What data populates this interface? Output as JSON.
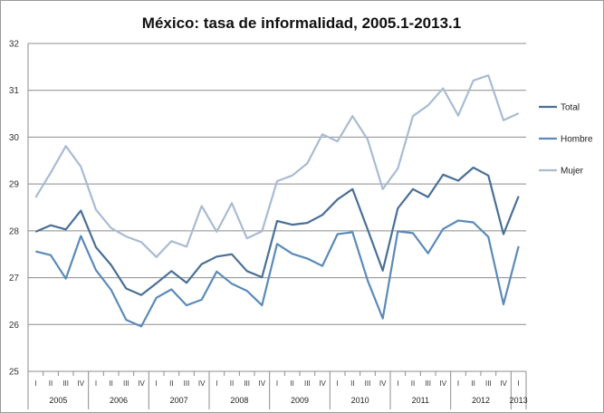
{
  "chart_data": {
    "type": "line",
    "title": "México: tasa de informalidad, 2005.1-2013.1",
    "xlabel": "",
    "ylabel": "",
    "ylim": [
      25,
      32
    ],
    "yticks": [
      25,
      26,
      27,
      28,
      29,
      30,
      31,
      32
    ],
    "grid": "horizontal",
    "legend_position": "right",
    "quarter_labels": [
      "I",
      "II",
      "III",
      "IV",
      "I",
      "II",
      "III",
      "IV",
      "I",
      "II",
      "III",
      "IV",
      "I",
      "II",
      "III",
      "IV",
      "I",
      "II",
      "III",
      "IV",
      "I",
      "II",
      "III",
      "IV",
      "I",
      "II",
      "III",
      "IV",
      "I",
      "II",
      "III",
      "IV",
      "I"
    ],
    "years": [
      {
        "label": "2005",
        "quarters": 4
      },
      {
        "label": "2006",
        "quarters": 4
      },
      {
        "label": "2007",
        "quarters": 4
      },
      {
        "label": "2008",
        "quarters": 4
      },
      {
        "label": "2009",
        "quarters": 4
      },
      {
        "label": "2010",
        "quarters": 4
      },
      {
        "label": "2011",
        "quarters": 4
      },
      {
        "label": "2012",
        "quarters": 4
      },
      {
        "label": "2013",
        "quarters": 1
      }
    ],
    "series": [
      {
        "name": "Total",
        "color": "#4a6f96",
        "values": [
          27.98,
          28.12,
          28.03,
          28.43,
          27.65,
          27.27,
          26.77,
          26.63,
          26.88,
          27.14,
          26.89,
          27.29,
          27.45,
          27.5,
          27.14,
          27.01,
          28.21,
          28.13,
          28.17,
          28.34,
          28.67,
          28.89,
          28.03,
          27.15,
          28.48,
          28.89,
          28.72,
          29.2,
          29.07,
          29.35,
          29.18,
          27.93,
          28.74
        ]
      },
      {
        "name": "Hombre",
        "color": "#5b8ab8",
        "values": [
          27.56,
          27.48,
          26.98,
          27.89,
          27.16,
          26.74,
          26.1,
          25.96,
          26.57,
          26.75,
          26.41,
          26.53,
          27.13,
          26.87,
          26.72,
          26.41,
          27.72,
          27.51,
          27.41,
          27.25,
          27.93,
          27.97,
          26.94,
          26.13,
          27.99,
          27.95,
          27.52,
          28.04,
          28.22,
          28.18,
          27.87,
          26.43,
          27.67
        ]
      },
      {
        "name": "Mujer",
        "color": "#a9bbd2",
        "values": [
          28.71,
          29.24,
          29.81,
          29.37,
          28.45,
          28.06,
          27.88,
          27.76,
          27.44,
          27.78,
          27.66,
          28.53,
          27.98,
          28.59,
          27.84,
          27.99,
          29.06,
          29.18,
          29.44,
          30.06,
          29.91,
          30.45,
          29.95,
          28.89,
          29.33,
          30.45,
          30.68,
          31.04,
          30.46,
          31.21,
          31.32,
          30.36,
          30.51
        ]
      }
    ]
  }
}
